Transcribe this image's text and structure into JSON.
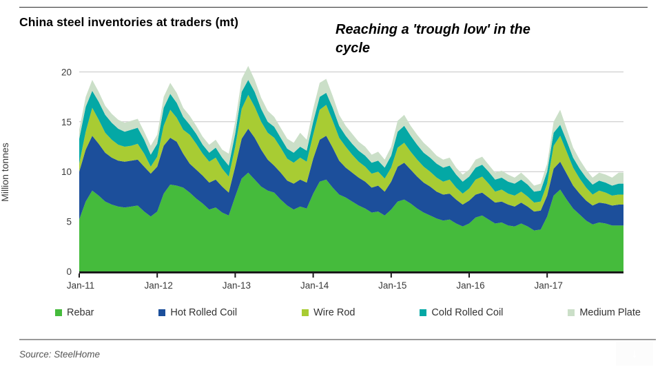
{
  "header": {
    "title": "China steel inventories at traders (mt)",
    "annotation_line1": "Reaching a 'trough low' in the",
    "annotation_line2": "cycle"
  },
  "footer": {
    "source": "Source: SteelHome"
  },
  "icons": {
    "download_arrow": "↓"
  },
  "chart_data": {
    "type": "area",
    "stacked": true,
    "title": "China steel inventories at traders (mt)",
    "xlabel": "",
    "ylabel": "Million tonnes",
    "ylim": [
      0,
      20
    ],
    "y_ticks": [
      0,
      5,
      10,
      15,
      20
    ],
    "x_tick_labels": [
      "Jan-11",
      "Jan-12",
      "Jan-13",
      "Jan-14",
      "Jan-15",
      "Jan-16",
      "Jan-17"
    ],
    "start_month": "2011-01",
    "end_month": "2017-12",
    "frequency": "monthly",
    "grid": "horizontal",
    "legend_position": "bottom",
    "annotation": "Reaching a 'trough low' in the cycle",
    "series": [
      {
        "name": "Rebar",
        "color": "#45BB3C",
        "values": [
          5.2,
          7.0,
          8.1,
          7.6,
          7.0,
          6.7,
          6.5,
          6.4,
          6.5,
          6.6,
          6.0,
          5.5,
          6.0,
          7.8,
          8.7,
          8.6,
          8.4,
          7.9,
          7.3,
          6.8,
          6.2,
          6.4,
          5.9,
          5.6,
          7.5,
          9.3,
          9.9,
          9.2,
          8.5,
          8.1,
          7.9,
          7.2,
          6.6,
          6.2,
          6.5,
          6.3,
          7.8,
          9.0,
          9.2,
          8.4,
          7.7,
          7.4,
          7.0,
          6.6,
          6.3,
          5.9,
          6.0,
          5.6,
          6.2,
          7.0,
          7.2,
          6.8,
          6.3,
          5.9,
          5.6,
          5.3,
          5.1,
          5.2,
          4.8,
          4.5,
          4.8,
          5.4,
          5.6,
          5.2,
          4.8,
          4.9,
          4.6,
          4.5,
          4.8,
          4.5,
          4.1,
          4.2,
          5.5,
          7.6,
          8.2,
          7.2,
          6.3,
          5.7,
          5.1,
          4.7,
          4.9,
          4.8,
          4.6,
          4.6
        ]
      },
      {
        "name": "Hot Rolled Coil",
        "color": "#1C4F9B",
        "values": [
          4.8,
          5.2,
          5.5,
          5.2,
          4.9,
          4.7,
          4.6,
          4.6,
          4.6,
          4.6,
          4.5,
          4.3,
          4.5,
          4.8,
          4.7,
          4.4,
          3.4,
          2.9,
          2.9,
          2.8,
          2.7,
          2.8,
          2.6,
          2.3,
          3.0,
          4.0,
          4.4,
          4.2,
          3.7,
          3.1,
          2.7,
          2.7,
          2.5,
          2.6,
          2.7,
          2.6,
          3.5,
          4.2,
          4.4,
          4.0,
          3.4,
          3.0,
          2.9,
          2.8,
          2.7,
          2.5,
          2.6,
          2.4,
          2.8,
          3.5,
          3.7,
          3.4,
          3.2,
          3.0,
          2.9,
          2.7,
          2.6,
          2.6,
          2.4,
          2.2,
          2.3,
          2.3,
          2.3,
          2.2,
          2.1,
          2.1,
          2.1,
          2.0,
          2.1,
          2.0,
          1.9,
          1.9,
          2.1,
          2.7,
          2.8,
          2.6,
          2.3,
          2.1,
          2.0,
          1.9,
          2.0,
          2.0,
          2.0,
          2.1
        ]
      },
      {
        "name": "Wire Rod",
        "color": "#A8CC33",
        "values": [
          0.8,
          1.8,
          2.8,
          2.4,
          2.0,
          1.8,
          1.6,
          1.5,
          1.5,
          1.6,
          1.3,
          0.7,
          1.0,
          2.0,
          2.8,
          2.4,
          2.4,
          2.9,
          2.6,
          2.2,
          2.1,
          2.2,
          1.8,
          1.6,
          2.0,
          3.0,
          3.4,
          3.1,
          2.8,
          2.7,
          2.8,
          2.5,
          2.2,
          2.1,
          2.2,
          2.1,
          2.4,
          3.0,
          3.1,
          2.7,
          2.3,
          2.1,
          1.8,
          1.6,
          1.5,
          1.4,
          1.4,
          1.3,
          1.4,
          1.9,
          2.0,
          1.8,
          1.7,
          1.6,
          1.5,
          1.4,
          1.3,
          1.4,
          1.2,
          1.1,
          1.2,
          1.5,
          1.6,
          1.4,
          1.1,
          1.2,
          1.1,
          1.1,
          1.1,
          1.0,
          0.9,
          0.9,
          1.2,
          2.3,
          2.6,
          2.2,
          1.8,
          1.5,
          1.3,
          1.1,
          1.2,
          1.1,
          1.0,
          1.0
        ]
      },
      {
        "name": "Cold Rolled Coil",
        "color": "#04A8A5",
        "values": [
          2.5,
          2.5,
          1.7,
          1.8,
          1.8,
          1.7,
          1.6,
          1.5,
          1.6,
          1.6,
          1.4,
          1.2,
          1.3,
          1.8,
          1.6,
          1.5,
          1.3,
          1.0,
          1.0,
          0.9,
          0.9,
          1.0,
          1.1,
          1.1,
          1.3,
          1.7,
          1.5,
          1.5,
          1.3,
          1.1,
          1.1,
          1.0,
          1.0,
          1.0,
          1.1,
          1.1,
          1.3,
          1.3,
          1.2,
          1.3,
          1.2,
          1.1,
          1.1,
          1.1,
          1.1,
          1.1,
          1.1,
          1.1,
          1.2,
          1.6,
          1.7,
          1.6,
          1.5,
          1.4,
          1.4,
          1.4,
          1.4,
          1.4,
          1.3,
          1.2,
          1.2,
          1.2,
          1.2,
          1.2,
          1.2,
          1.2,
          1.2,
          1.2,
          1.2,
          1.2,
          1.1,
          1.1,
          1.2,
          1.3,
          1.1,
          1.1,
          1.0,
          1.0,
          1.0,
          1.0,
          1.0,
          1.0,
          1.0,
          1.1
        ]
      },
      {
        "name": "Medium Plate",
        "color": "#CBDFC8",
        "values": [
          0.9,
          1.0,
          1.1,
          1.0,
          0.9,
          0.9,
          0.9,
          0.9,
          0.9,
          0.9,
          0.8,
          0.9,
          0.9,
          1.1,
          1.1,
          1.0,
          0.9,
          0.9,
          0.8,
          0.8,
          0.8,
          0.8,
          0.8,
          1.2,
          1.2,
          1.3,
          1.4,
          1.2,
          1.1,
          1.1,
          1.0,
          1.0,
          1.0,
          1.0,
          1.4,
          1.1,
          1.3,
          1.4,
          1.4,
          1.2,
          1.1,
          1.0,
          1.0,
          0.9,
          0.9,
          0.8,
          0.9,
          0.8,
          0.9,
          1.1,
          1.1,
          1.0,
          1.0,
          1.0,
          0.9,
          0.8,
          0.8,
          0.8,
          0.7,
          0.7,
          0.7,
          0.8,
          0.8,
          0.7,
          0.7,
          0.7,
          0.7,
          0.6,
          0.7,
          0.6,
          0.6,
          0.7,
          0.8,
          1.1,
          1.5,
          1.2,
          1.0,
          0.9,
          0.8,
          0.7,
          0.8,
          0.8,
          0.8,
          1.1
        ]
      }
    ]
  }
}
